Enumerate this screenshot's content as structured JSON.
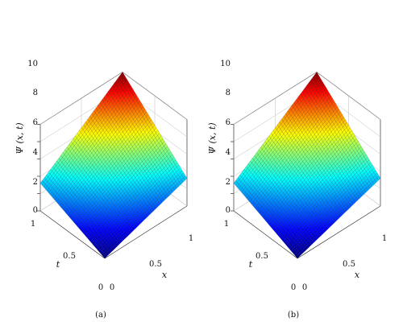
{
  "chart_data": [
    {
      "type": "surface",
      "caption": "(a)",
      "zlabel": "Ψ (x, t)",
      "xlabel": "x",
      "ylabel": "t",
      "xlim": [
        0,
        1
      ],
      "tlim": [
        0,
        1
      ],
      "zlim": [
        0,
        10
      ],
      "x_ticks": [
        "0",
        "0.5",
        "1"
      ],
      "t_ticks": [
        "0",
        "0.5",
        "1"
      ],
      "z_ticks": [
        "0",
        "2",
        "4",
        "6",
        "8",
        "10"
      ],
      "corner_values": {
        "x0_t0": 0.0,
        "x1_t0": 3.2,
        "x0_t1": 3.2,
        "x1_t1": 10.0
      },
      "colormap": "jet"
    },
    {
      "type": "surface",
      "caption": "(b)",
      "zlabel": "Ψ (x, t)",
      "xlabel": "x",
      "ylabel": "t",
      "xlim": [
        0,
        1
      ],
      "tlim": [
        0,
        1
      ],
      "zlim": [
        0,
        10
      ],
      "x_ticks": [
        "0",
        "0.5",
        "1"
      ],
      "t_ticks": [
        "0",
        "0.5",
        "1"
      ],
      "z_ticks": [
        "0",
        "2",
        "4",
        "6",
        "8",
        "10"
      ],
      "corner_values": {
        "x0_t0": 0.0,
        "x1_t0": 3.2,
        "x0_t1": 3.2,
        "x1_t1": 10.0
      },
      "colormap": "jet"
    }
  ]
}
